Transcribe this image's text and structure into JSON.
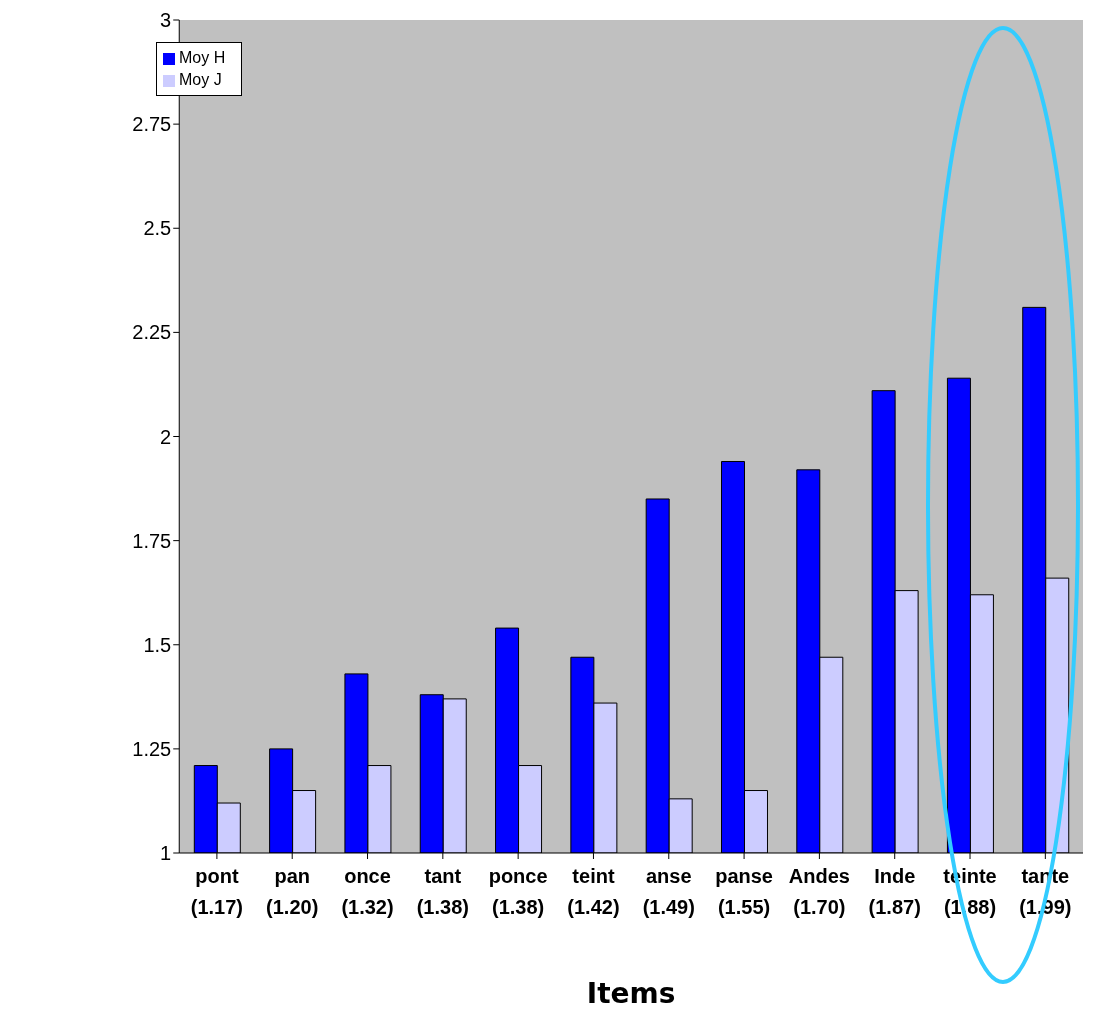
{
  "chart_data": {
    "type": "bar",
    "xlabel": "Items",
    "categories": [
      "pont (1.17)",
      "pan (1.20)",
      "once (1.32)",
      "tant (1.38)",
      "ponce (1.38)",
      "teint (1.42)",
      "anse (1.49)",
      "panse (1.55)",
      "Andes (1.70)",
      "Inde (1.87)",
      "teinte (1.88)",
      "tante (1.99)"
    ],
    "series": [
      {
        "name": "Moy H",
        "color": "#0000ff",
        "values": [
          1.21,
          1.25,
          1.43,
          1.38,
          1.54,
          1.47,
          1.85,
          1.94,
          1.92,
          2.11,
          2.14,
          2.31
        ]
      },
      {
        "name": "Moy J",
        "color": "#ccccff",
        "values": [
          1.12,
          1.15,
          1.21,
          1.37,
          1.21,
          1.36,
          1.13,
          1.15,
          1.47,
          1.63,
          1.62,
          1.66
        ]
      }
    ],
    "ylim": [
      1,
      3
    ],
    "yticks": [
      1,
      1.25,
      1.5,
      1.75,
      2,
      2.25,
      2.5,
      2.75,
      3
    ],
    "grid": false,
    "legend": "top left"
  }
}
